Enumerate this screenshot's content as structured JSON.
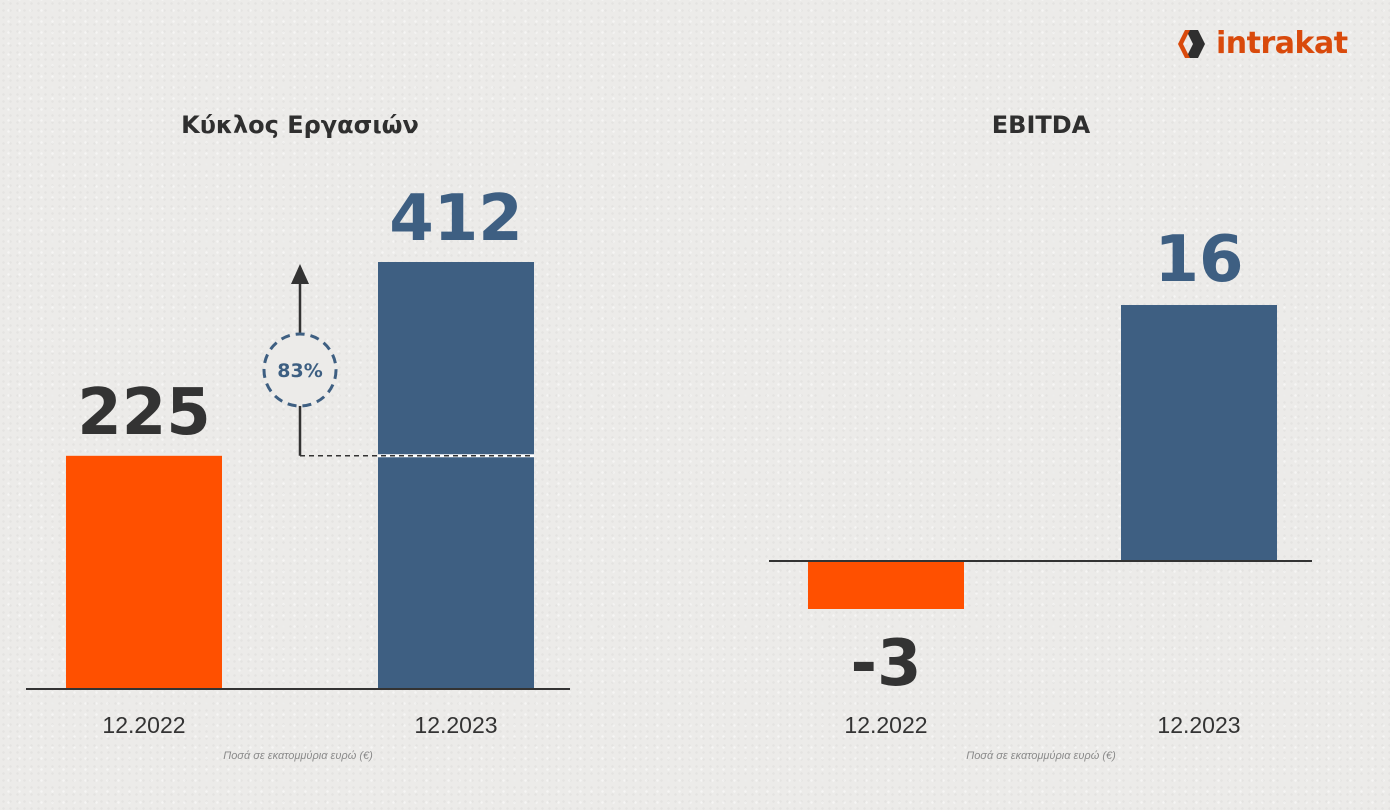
{
  "logo": {
    "part1": "intra",
    "part2": "kat",
    "brand_color": "#d94a0c",
    "mark_color": "#2f2f2f"
  },
  "colors": {
    "orange": "#ff5000",
    "blue": "#3e5f82",
    "dark": "#333333",
    "axis": "#333333"
  },
  "chart_data": [
    {
      "type": "bar",
      "title": "Κύκλος Εργασιών",
      "categories": [
        "12.2022",
        "12.2023"
      ],
      "values": [
        225,
        412
      ],
      "value_labels": [
        "225",
        "412"
      ],
      "bar_colors": [
        "#ff5000",
        "#3e5f82"
      ],
      "growth_label": "83%",
      "note": "Ποσά σε εκατομμύρια ευρώ (€)"
    },
    {
      "type": "bar",
      "title": "EBITDA",
      "categories": [
        "12.2022",
        "12.2023"
      ],
      "values": [
        -3,
        16
      ],
      "value_labels": [
        "-3",
        "16"
      ],
      "bar_colors": [
        "#ff5000",
        "#3e5f82"
      ],
      "note": "Ποσά σε εκατομμύρια ευρώ (€)"
    }
  ]
}
